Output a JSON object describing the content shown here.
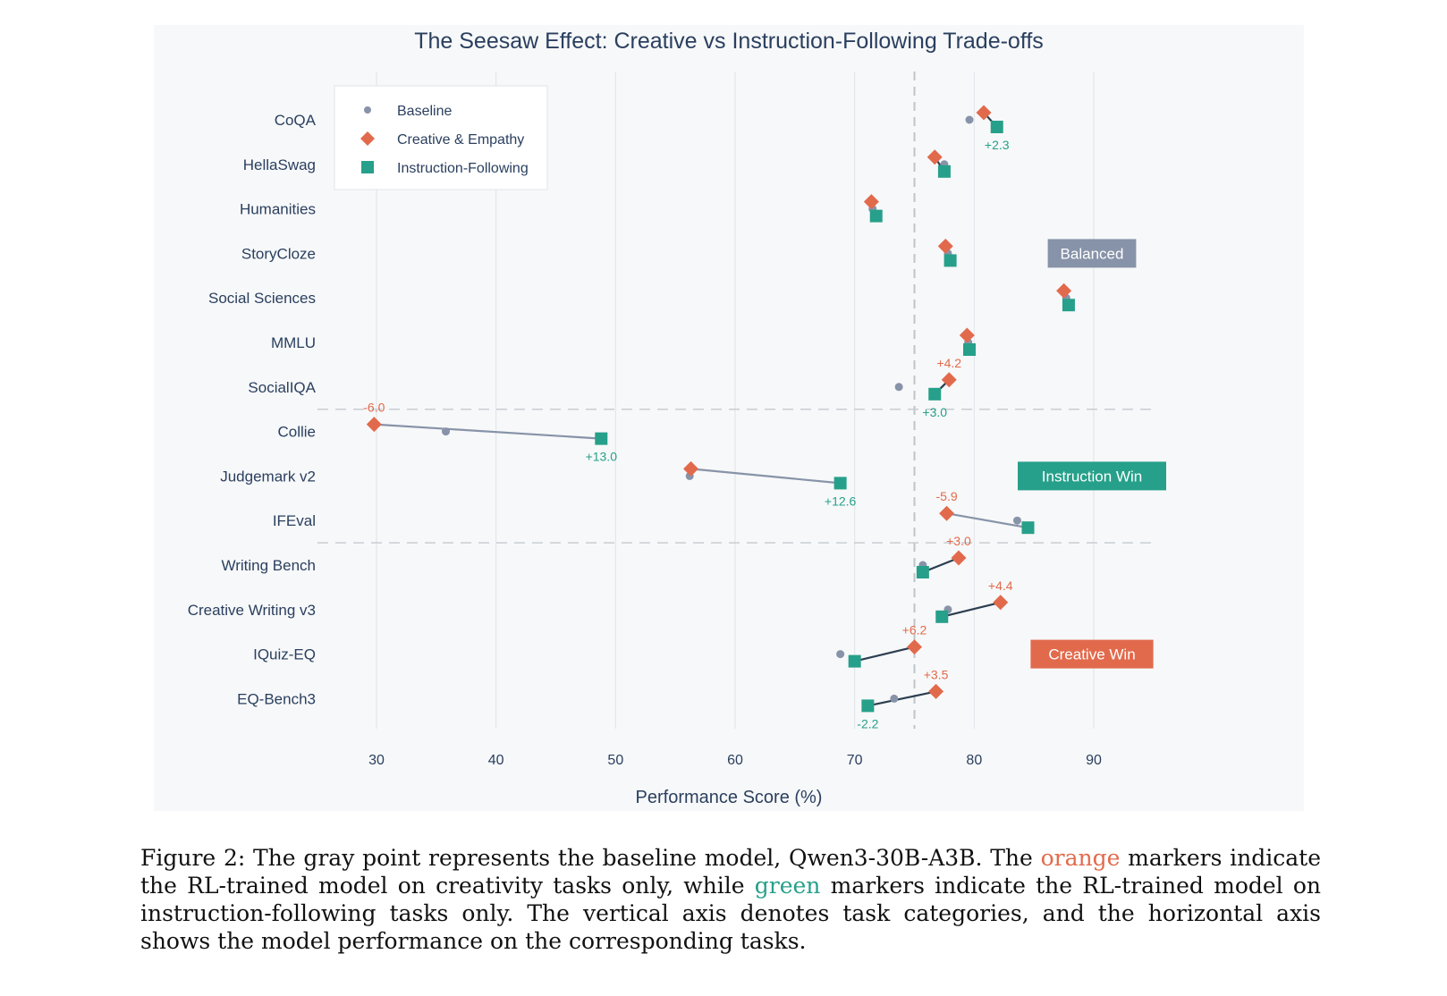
{
  "chart_data": {
    "type": "scatter",
    "title": "The Seesaw Effect: Creative vs Instruction-Following Trade-offs",
    "xlabel": "Performance Score (%)",
    "ylabel": "",
    "xlim": [
      25,
      96
    ],
    "xticks": [
      30,
      40,
      50,
      60,
      70,
      80,
      90
    ],
    "reference_line_x": 75,
    "categories": [
      "CoQA",
      "HellaSwag",
      "Humanities",
      "StoryCloze",
      "Social Sciences",
      "MMLU",
      "SocialIQA",
      "Collie",
      "Judgemark v2",
      "IFEval",
      "Writing Bench",
      "Creative Writing v3",
      "IQuiz-EQ",
      "EQ-Bench3"
    ],
    "series": [
      {
        "name": "Baseline",
        "color": "#8793a8",
        "marker": "circle",
        "values": [
          79.6,
          77.5,
          71.5,
          77.8,
          87.7,
          79.5,
          73.7,
          35.8,
          56.2,
          83.6,
          75.7,
          77.8,
          68.8,
          73.3
        ]
      },
      {
        "name": "Creative & Empathy",
        "color": "#e26a4c",
        "marker": "diamond",
        "values": [
          80.8,
          76.7,
          71.4,
          77.6,
          87.5,
          79.4,
          77.9,
          29.8,
          56.3,
          77.7,
          78.7,
          82.2,
          75.0,
          76.8
        ]
      },
      {
        "name": "Instruction-Following",
        "color": "#26a08a",
        "marker": "square",
        "values": [
          81.9,
          77.5,
          71.8,
          78.0,
          87.9,
          79.6,
          76.7,
          48.8,
          68.8,
          84.5,
          75.7,
          77.3,
          70.0,
          71.1
        ]
      }
    ],
    "connector_lines": [
      {
        "category": "CoQA",
        "color": "#2c3e50"
      },
      {
        "category": "HellaSwag",
        "color": "#2c3e50"
      },
      {
        "category": "SocialIQA",
        "color": "#2c3e50"
      },
      {
        "category": "Collie",
        "color": "#8793a8"
      },
      {
        "category": "Judgemark v2",
        "color": "#8793a8"
      },
      {
        "category": "IFEval",
        "color": "#8793a8"
      },
      {
        "category": "Writing Bench",
        "color": "#2c3e50"
      },
      {
        "category": "Creative Writing v3",
        "color": "#2c3e50"
      },
      {
        "category": "IQuiz-EQ",
        "color": "#2c3e50"
      },
      {
        "category": "EQ-Bench3",
        "color": "#2c3e50"
      }
    ],
    "group_separators_after": [
      "SocialIQA",
      "IFEval"
    ],
    "annotations": [
      {
        "category": "CoQA",
        "series": "Instruction-Following",
        "text": "+2.3",
        "pos": "below"
      },
      {
        "category": "SocialIQA",
        "series": "Creative & Empathy",
        "text": "+4.2",
        "pos": "above"
      },
      {
        "category": "SocialIQA",
        "series": "Instruction-Following",
        "text": "+3.0",
        "pos": "below"
      },
      {
        "category": "Collie",
        "series": "Creative & Empathy",
        "text": "-6.0",
        "pos": "above"
      },
      {
        "category": "Collie",
        "series": "Instruction-Following",
        "text": "+13.0",
        "pos": "below"
      },
      {
        "category": "Judgemark v2",
        "series": "Instruction-Following",
        "text": "+12.6",
        "pos": "below"
      },
      {
        "category": "IFEval",
        "series": "Creative & Empathy",
        "text": "-5.9",
        "pos": "above"
      },
      {
        "category": "Writing Bench",
        "series": "Creative & Empathy",
        "text": "+3.0",
        "pos": "above"
      },
      {
        "category": "Creative Writing v3",
        "series": "Creative & Empathy",
        "text": "+4.4",
        "pos": "above"
      },
      {
        "category": "IQuiz-EQ",
        "series": "Creative & Empathy",
        "text": "+6.2",
        "pos": "above"
      },
      {
        "category": "EQ-Bench3",
        "series": "Creative & Empathy",
        "text": "+3.5",
        "pos": "above"
      },
      {
        "category": "EQ-Bench3",
        "series": "Instruction-Following",
        "text": "-2.2",
        "pos": "below"
      }
    ],
    "region_labels": [
      {
        "text": "Balanced",
        "color": "#8793a8",
        "category": "StoryCloze"
      },
      {
        "text": "Instruction Win",
        "color": "#26a08a",
        "category": "Judgemark v2"
      },
      {
        "text": "Creative Win",
        "color": "#e26a4c",
        "category": "IQuiz-EQ"
      }
    ],
    "legend": {
      "placement": "top-left",
      "entries": [
        "Baseline",
        "Creative & Empathy",
        "Instruction-Following"
      ]
    },
    "grid": true
  },
  "caption": {
    "part1": "Figure 2: The gray point represents the baseline model, Qwen3-30B-A3B. The ",
    "orange_word": "orange",
    "part2": " markers indicate the RL-trained model on creativity tasks only, while ",
    "green_word": "green",
    "part3": " markers indicate the RL-trained model on instruction-following tasks only. The vertical axis denotes task categories, and the horizontal axis shows the model performance on the corresponding tasks."
  }
}
